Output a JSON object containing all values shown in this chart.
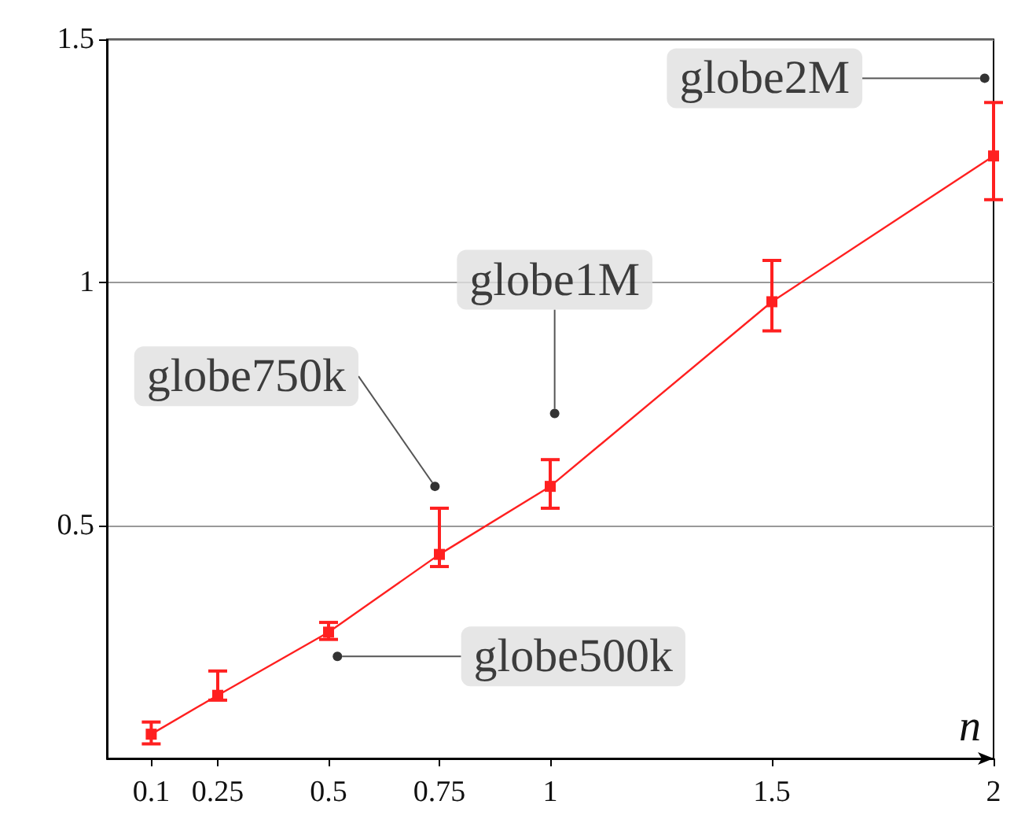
{
  "chart_data": {
    "type": "line",
    "xlabel": "n",
    "x": [
      0.1,
      0.25,
      0.5,
      0.75,
      1,
      1.5,
      2
    ],
    "series": [
      {
        "color": "#ff2020",
        "values": [
          0.07,
          0.15,
          0.28,
          0.44,
          0.58,
          0.96,
          1.26
        ],
        "errors": [
          [
            0.05,
            0.095
          ],
          [
            0.14,
            0.2
          ],
          [
            0.265,
            0.3
          ],
          [
            0.415,
            0.535
          ],
          [
            0.535,
            0.635
          ],
          [
            0.9,
            1.045
          ],
          [
            1.17,
            1.37
          ]
        ]
      }
    ],
    "xlim": [
      0,
      2
    ],
    "xticks": [
      0.1,
      0.25,
      0.5,
      0.75,
      1,
      1.5,
      2
    ],
    "ylim": [
      0.02,
      1.5
    ],
    "yticks": [
      0.5,
      1,
      1.5
    ],
    "grid": "y",
    "marker": "square",
    "line_style": "solid",
    "annotations": [
      {
        "text": "globe500k",
        "x": 0.52,
        "y": 0.23
      },
      {
        "text": "globe750k",
        "x": 0.74,
        "y": 0.58
      },
      {
        "text": "globe1M",
        "x": 1.01,
        "y": 0.73
      },
      {
        "text": "globe2M",
        "x": 1.98,
        "y": 1.42
      }
    ]
  }
}
